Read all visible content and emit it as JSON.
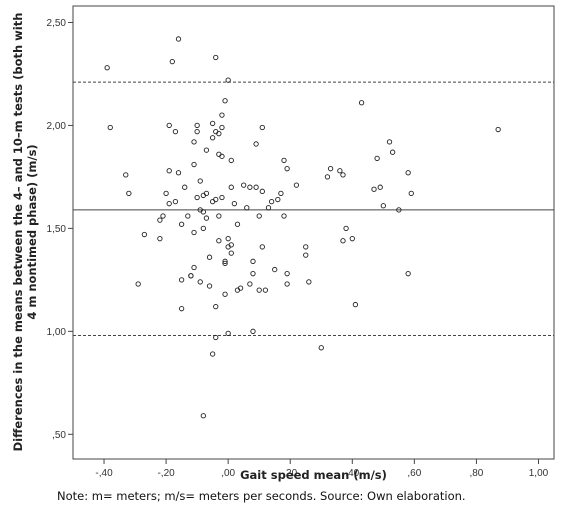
{
  "chart_data": {
    "type": "scatter",
    "title": "",
    "xlabel": "Gait speed mean (m/s)",
    "ylabel_lines": [
      "Differences in the means between the 4– and 10–m tests (both with",
      "4 m nontimed phase) (m/s)"
    ],
    "xlim": [
      -0.5,
      1.05
    ],
    "ylim": [
      0.38,
      2.58
    ],
    "x_ticks": [
      -0.4,
      -0.2,
      0.0,
      0.2,
      0.4,
      0.6,
      0.8,
      1.0
    ],
    "x_tick_labels": [
      "-,40",
      "-,20",
      ",00",
      ",20",
      ",40",
      ",60",
      ",80",
      "1,00"
    ],
    "y_ticks": [
      0.5,
      1.0,
      1.5,
      2.0,
      2.5
    ],
    "y_tick_labels": [
      ",50",
      "1,00",
      "1,50",
      "2,00",
      "2,50"
    ],
    "grid": false,
    "legend": "none",
    "reference_lines": [
      {
        "value": 2.21,
        "style": "dashed"
      },
      {
        "value": 1.59,
        "style": "solid"
      },
      {
        "value": 0.98,
        "style": "dashed"
      }
    ],
    "points": [
      [
        -0.39,
        2.28
      ],
      [
        -0.38,
        1.99
      ],
      [
        -0.33,
        1.76
      ],
      [
        -0.32,
        1.67
      ],
      [
        -0.29,
        1.23
      ],
      [
        -0.27,
        1.47
      ],
      [
        -0.22,
        1.45
      ],
      [
        -0.22,
        1.54
      ],
      [
        -0.21,
        1.56
      ],
      [
        -0.2,
        1.67
      ],
      [
        -0.19,
        1.78
      ],
      [
        -0.19,
        2.0
      ],
      [
        -0.19,
        1.62
      ],
      [
        -0.18,
        2.31
      ],
      [
        -0.17,
        1.97
      ],
      [
        -0.17,
        1.63
      ],
      [
        -0.16,
        2.42
      ],
      [
        -0.16,
        1.77
      ],
      [
        -0.15,
        1.11
      ],
      [
        -0.15,
        1.25
      ],
      [
        -0.15,
        1.52
      ],
      [
        -0.14,
        1.7
      ],
      [
        -0.13,
        1.56
      ],
      [
        -0.12,
        1.27
      ],
      [
        -0.12,
        1.27
      ],
      [
        -0.11,
        1.81
      ],
      [
        -0.11,
        1.92
      ],
      [
        -0.11,
        1.31
      ],
      [
        -0.11,
        1.48
      ],
      [
        -0.1,
        2.0
      ],
      [
        -0.1,
        1.97
      ],
      [
        -0.1,
        1.65
      ],
      [
        -0.09,
        1.24
      ],
      [
        -0.09,
        1.59
      ],
      [
        -0.09,
        1.73
      ],
      [
        -0.08,
        1.58
      ],
      [
        -0.08,
        1.66
      ],
      [
        -0.08,
        1.5
      ],
      [
        -0.08,
        0.59
      ],
      [
        -0.07,
        1.67
      ],
      [
        -0.07,
        1.88
      ],
      [
        -0.07,
        1.55
      ],
      [
        -0.06,
        1.36
      ],
      [
        -0.06,
        1.22
      ],
      [
        -0.05,
        2.01
      ],
      [
        -0.05,
        1.94
      ],
      [
        -0.05,
        0.89
      ],
      [
        -0.05,
        1.63
      ],
      [
        -0.04,
        2.33
      ],
      [
        -0.04,
        1.97
      ],
      [
        -0.04,
        0.97
      ],
      [
        -0.04,
        1.64
      ],
      [
        -0.04,
        1.12
      ],
      [
        -0.03,
        1.96
      ],
      [
        -0.03,
        1.86
      ],
      [
        -0.03,
        1.44
      ],
      [
        -0.03,
        1.56
      ],
      [
        -0.02,
        2.05
      ],
      [
        -0.02,
        1.99
      ],
      [
        -0.02,
        1.85
      ],
      [
        -0.02,
        1.65
      ],
      [
        -0.01,
        2.12
      ],
      [
        -0.01,
        1.34
      ],
      [
        -0.01,
        1.33
      ],
      [
        -0.01,
        1.18
      ],
      [
        0.0,
        2.22
      ],
      [
        0.0,
        1.41
      ],
      [
        0.0,
        1.45
      ],
      [
        0.0,
        0.99
      ],
      [
        0.01,
        1.83
      ],
      [
        0.01,
        1.7
      ],
      [
        0.01,
        1.38
      ],
      [
        0.01,
        1.42
      ],
      [
        0.02,
        1.62
      ],
      [
        0.03,
        1.52
      ],
      [
        0.03,
        1.2
      ],
      [
        0.04,
        1.21
      ],
      [
        0.05,
        1.71
      ],
      [
        0.06,
        1.6
      ],
      [
        0.07,
        1.7
      ],
      [
        0.07,
        1.23
      ],
      [
        0.08,
        1.28
      ],
      [
        0.08,
        1.34
      ],
      [
        0.08,
        1.0
      ],
      [
        0.09,
        1.91
      ],
      [
        0.09,
        1.7
      ],
      [
        0.1,
        1.56
      ],
      [
        0.1,
        1.2
      ],
      [
        0.11,
        1.99
      ],
      [
        0.11,
        1.68
      ],
      [
        0.11,
        1.41
      ],
      [
        0.12,
        1.2
      ],
      [
        0.13,
        1.6
      ],
      [
        0.14,
        1.63
      ],
      [
        0.15,
        1.3
      ],
      [
        0.16,
        1.64
      ],
      [
        0.17,
        1.67
      ],
      [
        0.18,
        1.83
      ],
      [
        0.18,
        1.56
      ],
      [
        0.19,
        1.79
      ],
      [
        0.19,
        1.28
      ],
      [
        0.19,
        1.23
      ],
      [
        0.22,
        1.71
      ],
      [
        0.25,
        1.41
      ],
      [
        0.25,
        1.37
      ],
      [
        0.26,
        1.24
      ],
      [
        0.3,
        0.92
      ],
      [
        0.32,
        1.75
      ],
      [
        0.33,
        1.79
      ],
      [
        0.36,
        1.78
      ],
      [
        0.37,
        1.76
      ],
      [
        0.37,
        1.44
      ],
      [
        0.38,
        1.5
      ],
      [
        0.4,
        1.45
      ],
      [
        0.41,
        1.13
      ],
      [
        0.43,
        2.11
      ],
      [
        0.47,
        1.69
      ],
      [
        0.48,
        1.84
      ],
      [
        0.49,
        1.7
      ],
      [
        0.5,
        1.61
      ],
      [
        0.52,
        1.92
      ],
      [
        0.53,
        1.87
      ],
      [
        0.55,
        1.59
      ],
      [
        0.58,
        1.77
      ],
      [
        0.58,
        1.28
      ],
      [
        0.59,
        1.67
      ],
      [
        0.87,
        1.98
      ]
    ]
  },
  "caption": "Note: m= meters; m/s= meters per seconds. Source: Own elaboration."
}
